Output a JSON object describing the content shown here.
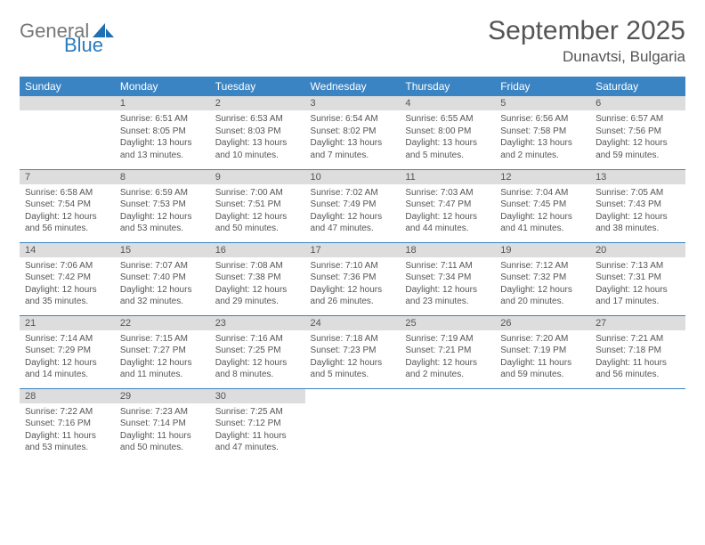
{
  "brand": {
    "line1": "General",
    "line2": "Blue"
  },
  "title": "September 2025",
  "location": "Dunavtsi, Bulgaria",
  "colors": {
    "header_bg": "#3b84c4",
    "header_text": "#ffffff",
    "daynum_bg": "#dddddd",
    "text": "#555555",
    "rule": "#3b84c4",
    "brand_blue": "#2b7bbf"
  },
  "weekdays": [
    "Sunday",
    "Monday",
    "Tuesday",
    "Wednesday",
    "Thursday",
    "Friday",
    "Saturday"
  ],
  "weeks": [
    [
      null,
      {
        "n": "1",
        "sunrise": "6:51 AM",
        "sunset": "8:05 PM",
        "daylight": "13 hours and 13 minutes."
      },
      {
        "n": "2",
        "sunrise": "6:53 AM",
        "sunset": "8:03 PM",
        "daylight": "13 hours and 10 minutes."
      },
      {
        "n": "3",
        "sunrise": "6:54 AM",
        "sunset": "8:02 PM",
        "daylight": "13 hours and 7 minutes."
      },
      {
        "n": "4",
        "sunrise": "6:55 AM",
        "sunset": "8:00 PM",
        "daylight": "13 hours and 5 minutes."
      },
      {
        "n": "5",
        "sunrise": "6:56 AM",
        "sunset": "7:58 PM",
        "daylight": "13 hours and 2 minutes."
      },
      {
        "n": "6",
        "sunrise": "6:57 AM",
        "sunset": "7:56 PM",
        "daylight": "12 hours and 59 minutes."
      }
    ],
    [
      {
        "n": "7",
        "sunrise": "6:58 AM",
        "sunset": "7:54 PM",
        "daylight": "12 hours and 56 minutes."
      },
      {
        "n": "8",
        "sunrise": "6:59 AM",
        "sunset": "7:53 PM",
        "daylight": "12 hours and 53 minutes."
      },
      {
        "n": "9",
        "sunrise": "7:00 AM",
        "sunset": "7:51 PM",
        "daylight": "12 hours and 50 minutes."
      },
      {
        "n": "10",
        "sunrise": "7:02 AM",
        "sunset": "7:49 PM",
        "daylight": "12 hours and 47 minutes."
      },
      {
        "n": "11",
        "sunrise": "7:03 AM",
        "sunset": "7:47 PM",
        "daylight": "12 hours and 44 minutes."
      },
      {
        "n": "12",
        "sunrise": "7:04 AM",
        "sunset": "7:45 PM",
        "daylight": "12 hours and 41 minutes."
      },
      {
        "n": "13",
        "sunrise": "7:05 AM",
        "sunset": "7:43 PM",
        "daylight": "12 hours and 38 minutes."
      }
    ],
    [
      {
        "n": "14",
        "sunrise": "7:06 AM",
        "sunset": "7:42 PM",
        "daylight": "12 hours and 35 minutes."
      },
      {
        "n": "15",
        "sunrise": "7:07 AM",
        "sunset": "7:40 PM",
        "daylight": "12 hours and 32 minutes."
      },
      {
        "n": "16",
        "sunrise": "7:08 AM",
        "sunset": "7:38 PM",
        "daylight": "12 hours and 29 minutes."
      },
      {
        "n": "17",
        "sunrise": "7:10 AM",
        "sunset": "7:36 PM",
        "daylight": "12 hours and 26 minutes."
      },
      {
        "n": "18",
        "sunrise": "7:11 AM",
        "sunset": "7:34 PM",
        "daylight": "12 hours and 23 minutes."
      },
      {
        "n": "19",
        "sunrise": "7:12 AM",
        "sunset": "7:32 PM",
        "daylight": "12 hours and 20 minutes."
      },
      {
        "n": "20",
        "sunrise": "7:13 AM",
        "sunset": "7:31 PM",
        "daylight": "12 hours and 17 minutes."
      }
    ],
    [
      {
        "n": "21",
        "sunrise": "7:14 AM",
        "sunset": "7:29 PM",
        "daylight": "12 hours and 14 minutes."
      },
      {
        "n": "22",
        "sunrise": "7:15 AM",
        "sunset": "7:27 PM",
        "daylight": "12 hours and 11 minutes."
      },
      {
        "n": "23",
        "sunrise": "7:16 AM",
        "sunset": "7:25 PM",
        "daylight": "12 hours and 8 minutes."
      },
      {
        "n": "24",
        "sunrise": "7:18 AM",
        "sunset": "7:23 PM",
        "daylight": "12 hours and 5 minutes."
      },
      {
        "n": "25",
        "sunrise": "7:19 AM",
        "sunset": "7:21 PM",
        "daylight": "12 hours and 2 minutes."
      },
      {
        "n": "26",
        "sunrise": "7:20 AM",
        "sunset": "7:19 PM",
        "daylight": "11 hours and 59 minutes."
      },
      {
        "n": "27",
        "sunrise": "7:21 AM",
        "sunset": "7:18 PM",
        "daylight": "11 hours and 56 minutes."
      }
    ],
    [
      {
        "n": "28",
        "sunrise": "7:22 AM",
        "sunset": "7:16 PM",
        "daylight": "11 hours and 53 minutes."
      },
      {
        "n": "29",
        "sunrise": "7:23 AM",
        "sunset": "7:14 PM",
        "daylight": "11 hours and 50 minutes."
      },
      {
        "n": "30",
        "sunrise": "7:25 AM",
        "sunset": "7:12 PM",
        "daylight": "11 hours and 47 minutes."
      },
      null,
      null,
      null,
      null
    ]
  ],
  "labels": {
    "sunrise": "Sunrise:",
    "sunset": "Sunset:",
    "daylight": "Daylight:"
  }
}
